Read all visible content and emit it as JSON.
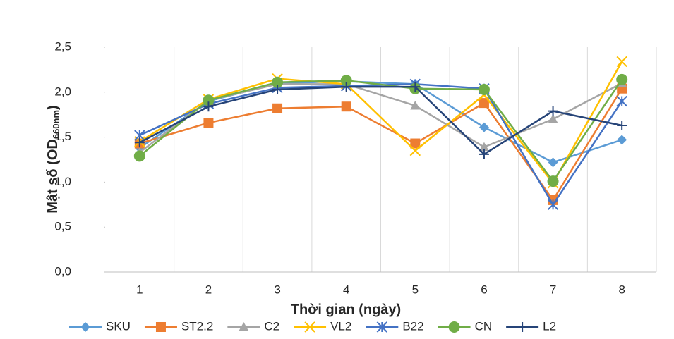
{
  "chart_data": {
    "type": "line",
    "y_label_parts": [
      "Mật số (OD",
      "660nm",
      ")"
    ],
    "x_label": "Thời gian (ngày)",
    "categories": [
      "1",
      "2",
      "3",
      "4",
      "5",
      "6",
      "7",
      "8"
    ],
    "ylim": [
      0,
      2.5
    ],
    "yticks": [
      {
        "value": 0,
        "label": "0,0"
      },
      {
        "value": 0.5,
        "label": "0,5"
      },
      {
        "value": 1,
        "label": "1,0"
      },
      {
        "value": 1.5,
        "label": "1,5"
      },
      {
        "value": 2,
        "label": "2,0"
      },
      {
        "value": 2.5,
        "label": "2,5"
      }
    ],
    "grid": true,
    "legend": "bottom",
    "series": [
      {
        "name": "SKU",
        "color": "#5b9bd5",
        "marker": "diamond",
        "values": [
          1.38,
          1.9,
          2.1,
          2.12,
          2.09,
          1.61,
          1.22,
          1.47
        ]
      },
      {
        "name": "ST2.2",
        "color": "#ed7d31",
        "marker": "square",
        "values": [
          1.43,
          1.66,
          1.82,
          1.84,
          1.43,
          1.88,
          0.8,
          2.04
        ]
      },
      {
        "name": "C2",
        "color": "#a5a5a5",
        "marker": "triangle",
        "values": [
          1.33,
          1.91,
          2.09,
          2.09,
          1.85,
          1.39,
          1.7,
          2.1
        ]
      },
      {
        "name": "VL2",
        "color": "#ffc000",
        "marker": "x",
        "values": [
          1.45,
          1.92,
          2.15,
          2.09,
          1.35,
          1.97,
          0.99,
          2.34
        ]
      },
      {
        "name": "B22",
        "color": "#4472c4",
        "marker": "asterisk",
        "values": [
          1.52,
          1.87,
          2.05,
          2.07,
          2.09,
          2.04,
          0.75,
          1.9
        ]
      },
      {
        "name": "CN",
        "color": "#70ad47",
        "marker": "circle",
        "values": [
          1.29,
          1.91,
          2.11,
          2.13,
          2.04,
          2.03,
          1.01,
          2.14
        ]
      },
      {
        "name": "L2",
        "color": "#264478",
        "marker": "plus",
        "values": [
          1.44,
          1.84,
          2.03,
          2.06,
          2.06,
          1.31,
          1.79,
          1.63
        ]
      }
    ]
  }
}
